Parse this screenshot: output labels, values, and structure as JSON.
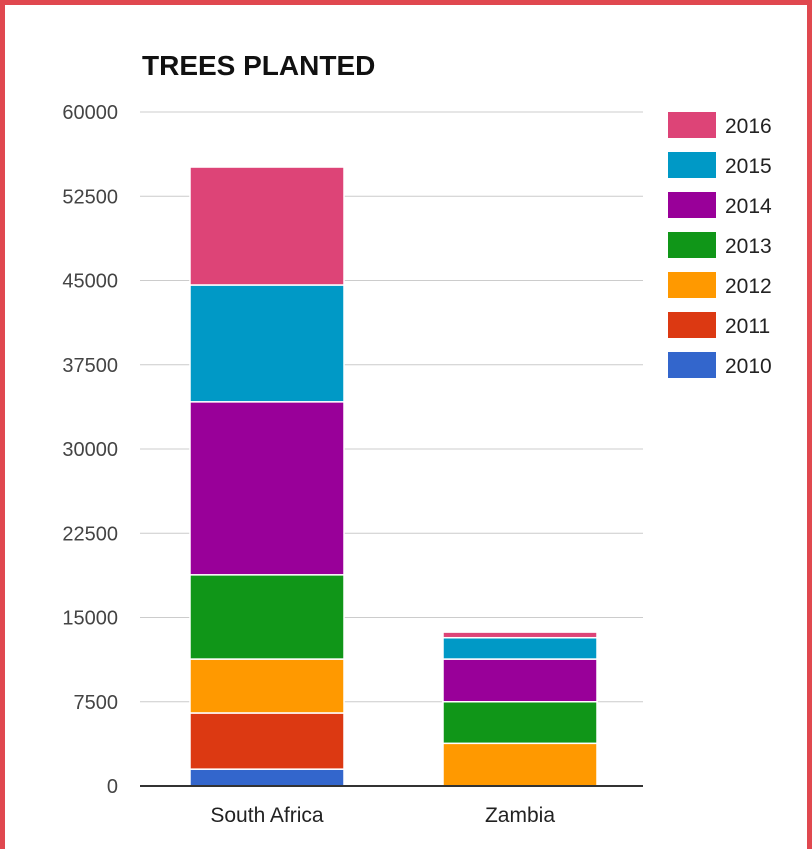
{
  "chart_data": {
    "type": "bar",
    "stacked": true,
    "title": "TREES PLANTED",
    "xlabel": "",
    "ylabel": "",
    "categories": [
      "South Africa",
      "Zambia"
    ],
    "ylim": [
      0,
      60000
    ],
    "yticks": [
      0,
      7500,
      15000,
      22500,
      30000,
      37500,
      45000,
      52500,
      60000
    ],
    "grid": true,
    "legend_position": "right",
    "series": [
      {
        "name": "2010",
        "color": "#3366cc",
        "values": [
          1500,
          0
        ]
      },
      {
        "name": "2011",
        "color": "#dc3912",
        "values": [
          5000,
          0
        ]
      },
      {
        "name": "2012",
        "color": "#ff9900",
        "values": [
          4800,
          3800
        ]
      },
      {
        "name": "2013",
        "color": "#109618",
        "values": [
          7500,
          3700
        ]
      },
      {
        "name": "2014",
        "color": "#990099",
        "values": [
          15400,
          3800
        ]
      },
      {
        "name": "2015",
        "color": "#0099c6",
        "values": [
          10400,
          1900
        ]
      },
      {
        "name": "2016",
        "color": "#dd4477",
        "values": [
          10500,
          500
        ]
      }
    ]
  }
}
